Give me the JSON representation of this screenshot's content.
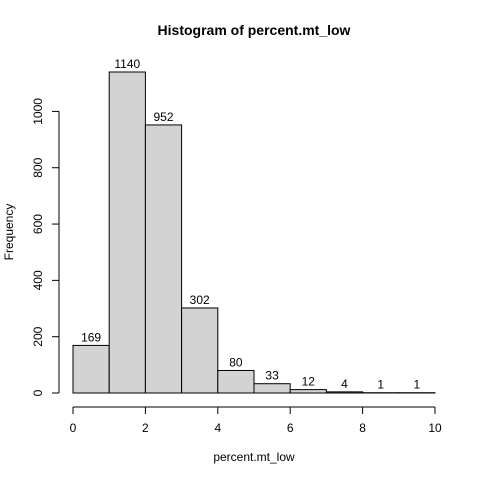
{
  "chart_data": {
    "type": "bar",
    "title": "Histogram of percent.mt_low",
    "xlabel": "percent.mt_low",
    "ylabel": "Frequency",
    "bins": [
      {
        "start": 0,
        "end": 1,
        "count": 169
      },
      {
        "start": 1,
        "end": 2,
        "count": 1140
      },
      {
        "start": 2,
        "end": 3,
        "count": 952
      },
      {
        "start": 3,
        "end": 4,
        "count": 302
      },
      {
        "start": 4,
        "end": 5,
        "count": 80
      },
      {
        "start": 5,
        "end": 6,
        "count": 33
      },
      {
        "start": 6,
        "end": 7,
        "count": 12
      },
      {
        "start": 7,
        "end": 8,
        "count": 4
      },
      {
        "start": 8,
        "end": 9,
        "count": 1
      },
      {
        "start": 9,
        "end": 10,
        "count": 1
      }
    ],
    "xlim": [
      0,
      10
    ],
    "ylim": [
      0,
      1140
    ],
    "x_ticks": [
      0,
      2,
      4,
      6,
      8,
      10
    ],
    "y_ticks": [
      0,
      200,
      400,
      600,
      800,
      1000
    ],
    "bar_color": "#d3d3d3",
    "grid": false
  }
}
